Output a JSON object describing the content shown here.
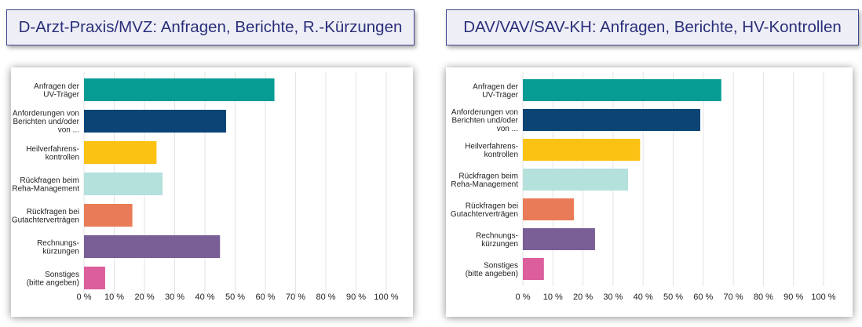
{
  "chart_data": [
    {
      "type": "bar",
      "orientation": "horizontal",
      "title": "D-Arzt-Praxis/MVZ: Anfragen, Berichte, R.-Kürzungen",
      "categories": [
        [
          "Anfragen der",
          "UV-Träger"
        ],
        [
          "Anforderungen von",
          "Berichten und/oder",
          "von ..."
        ],
        [
          "Heilverfahrens-",
          "kontrollen"
        ],
        [
          "Rückfragen beim",
          "Reha-Management"
        ],
        [
          "Rückfragen bei",
          "Gutachterverträgen"
        ],
        [
          "Rechnungs-",
          "kürzungen"
        ],
        [
          "Sonstiges",
          "(bitte angeben)"
        ]
      ],
      "values": [
        63,
        47,
        24,
        26,
        16,
        45,
        7
      ],
      "colors": [
        "#069c94",
        "#0d4476",
        "#fbc213",
        "#b4e1dc",
        "#ea7b58",
        "#7a5e96",
        "#dc5e9c"
      ],
      "xlim": [
        0,
        100
      ],
      "xticks": [
        "0 %",
        "10 %",
        "20 %",
        "30 %",
        "40 %",
        "50 %",
        "60 %",
        "70 %",
        "80 %",
        "90 %",
        "100 %"
      ],
      "grid": true
    },
    {
      "type": "bar",
      "orientation": "horizontal",
      "title": "DAV/VAV/SAV-KH: Anfragen, Berichte, HV-Kontrollen",
      "categories": [
        [
          "Anfragen der",
          "UV-Träger"
        ],
        [
          "Anforderungen von",
          "Berichten und/oder",
          "von ..."
        ],
        [
          "Heilverfahrens-",
          "kontrollen"
        ],
        [
          "Rückfragen beim",
          "Reha-Management"
        ],
        [
          "Rückfragen bei",
          "Gutachterverträgen"
        ],
        [
          "Rechnungs-",
          "kürzungen"
        ],
        [
          "Sonstiges",
          "(bitte angeben)"
        ]
      ],
      "values": [
        66,
        59,
        39,
        35,
        17,
        24,
        7
      ],
      "colors": [
        "#069c94",
        "#0d4476",
        "#fbc213",
        "#b4e1dc",
        "#ea7b58",
        "#7a5e96",
        "#dc5e9c"
      ],
      "xlim": [
        0,
        100
      ],
      "xticks": [
        "0 %",
        "10 %",
        "20 %",
        "30 %",
        "40 %",
        "50 %",
        "60 %",
        "70 %",
        "80 %",
        "90 %",
        "100 %"
      ],
      "grid": true
    }
  ]
}
